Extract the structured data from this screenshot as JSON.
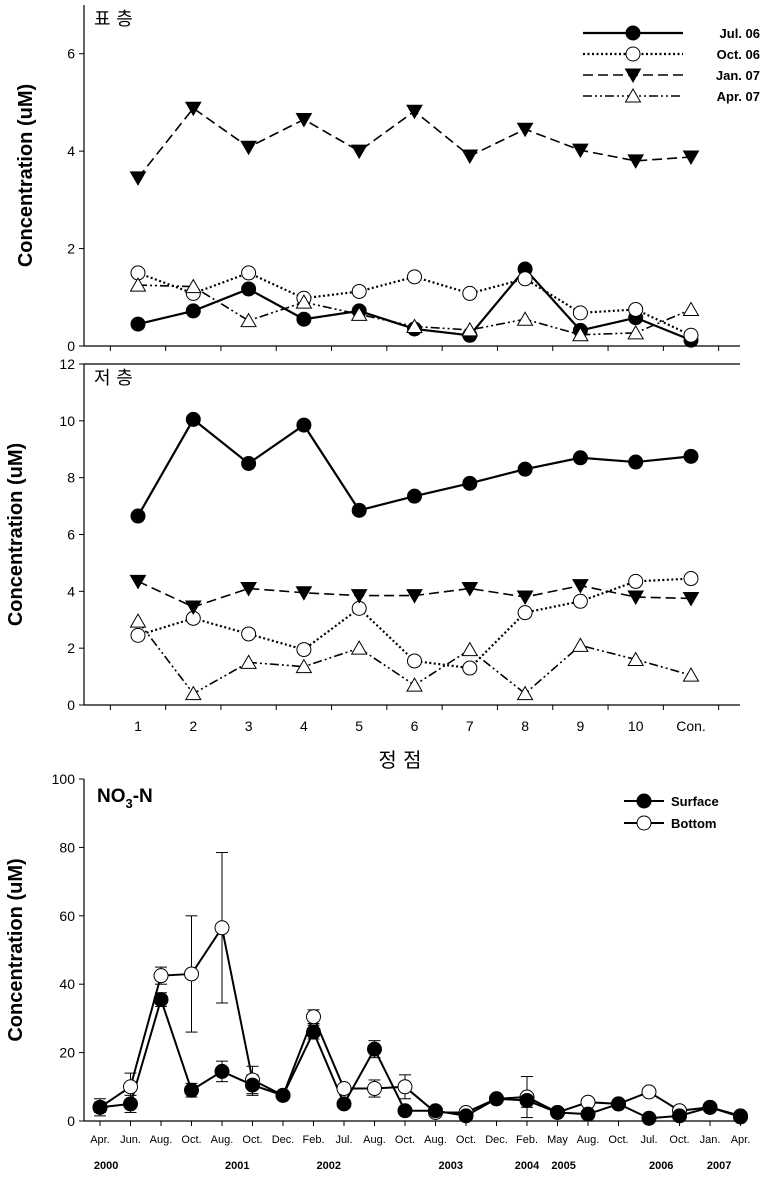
{
  "chart_data": [
    {
      "type": "line",
      "title": "표 층",
      "xlabel": "",
      "ylabel": "Concentration (uM)",
      "ylim": [
        0,
        7
      ],
      "yticks": [
        0,
        2,
        4,
        6
      ],
      "categories": [
        "1",
        "2",
        "3",
        "4",
        "5",
        "6",
        "7",
        "8",
        "9",
        "10",
        "Con."
      ],
      "series": [
        {
          "name": "Jul. 06",
          "values": [
            0.45,
            0.72,
            1.17,
            0.55,
            0.72,
            0.35,
            0.22,
            1.58,
            0.32,
            0.58,
            0.12
          ]
        },
        {
          "name": "Oct. 06",
          "values": [
            1.5,
            1.08,
            1.5,
            0.98,
            1.12,
            1.42,
            1.08,
            1.38,
            0.68,
            0.75,
            0.22
          ]
        },
        {
          "name": "Jan. 07",
          "values": [
            3.45,
            4.88,
            4.08,
            4.65,
            4.0,
            4.82,
            3.9,
            4.45,
            4.02,
            3.8,
            3.88
          ]
        },
        {
          "name": "Apr. 07",
          "values": [
            1.25,
            1.22,
            0.52,
            0.9,
            0.65,
            0.4,
            0.33,
            0.55,
            0.23,
            0.27,
            0.75
          ]
        }
      ]
    },
    {
      "type": "line",
      "title": "저 층",
      "xlabel": "정 점",
      "ylabel": "Concentration (uM)",
      "ylim": [
        0,
        12
      ],
      "yticks": [
        0,
        2,
        4,
        6,
        8,
        10,
        12
      ],
      "categories": [
        "1",
        "2",
        "3",
        "4",
        "5",
        "6",
        "7",
        "8",
        "9",
        "10",
        "Con."
      ],
      "series": [
        {
          "name": "Jul. 06",
          "values": [
            6.65,
            10.05,
            8.5,
            9.85,
            6.85,
            7.35,
            7.8,
            8.3,
            8.7,
            8.55,
            8.75
          ]
        },
        {
          "name": "Oct. 06",
          "values": [
            2.45,
            3.05,
            2.5,
            1.95,
            3.4,
            1.55,
            1.3,
            3.25,
            3.65,
            4.35,
            4.45
          ]
        },
        {
          "name": "Jan. 07",
          "values": [
            4.35,
            3.45,
            4.1,
            3.95,
            3.85,
            3.85,
            4.1,
            3.8,
            4.2,
            3.8,
            3.75
          ]
        },
        {
          "name": "Apr. 07",
          "values": [
            2.95,
            0.4,
            1.5,
            1.35,
            2.0,
            0.7,
            1.95,
            0.4,
            2.1,
            1.6,
            1.05
          ]
        }
      ]
    },
    {
      "type": "line",
      "title": "NO3-N",
      "title_main": "NO",
      "title_sub": "3",
      "title_tail": "-N",
      "xlabel": "",
      "ylabel": "Concentration (uM)",
      "ylim": [
        0,
        100
      ],
      "yticks": [
        0,
        20,
        40,
        60,
        80,
        100
      ],
      "categories": [
        "Apr.",
        "Jun.",
        "Aug.",
        "Oct.",
        "Aug.",
        "Oct.",
        "Dec.",
        "Feb.",
        "Jul.",
        "Aug.",
        "Oct.",
        "Aug.",
        "Oct.",
        "Dec.",
        "Feb.",
        "May",
        "Aug.",
        "Oct.",
        "Jul.",
        "Oct.",
        "Jan.",
        "Apr."
      ],
      "years": [
        {
          "label": "2000",
          "at": 0.2
        },
        {
          "label": "2001",
          "at": 4.5
        },
        {
          "label": "2002",
          "at": 7.5
        },
        {
          "label": "2003",
          "at": 11.5
        },
        {
          "label": "2004",
          "at": 14.0
        },
        {
          "label": "2005",
          "at": 15.2
        },
        {
          "label": "2006",
          "at": 18.4
        },
        {
          "label": "2007",
          "at": 20.3
        }
      ],
      "series": [
        {
          "name": "Surface",
          "values": [
            4.0,
            5.0,
            35.5,
            9.0,
            14.5,
            10.5,
            7.5,
            26.0,
            5.0,
            21.0,
            3.0,
            3.0,
            1.5,
            6.5,
            6.0,
            2.5,
            2.0,
            5.0,
            0.8,
            1.5,
            4.0,
            1.2
          ],
          "errors": [
            1.5,
            2.5,
            2.0,
            2.0,
            3.0,
            3.0,
            0.0,
            2.0,
            0.0,
            2.5,
            0.0,
            0.0,
            0.0,
            0.0,
            2.0,
            0.0,
            0.0,
            0.0,
            0.0,
            0.0,
            0.0,
            0.0
          ]
        },
        {
          "name": "Bottom",
          "values": [
            4.0,
            10.0,
            42.5,
            43.0,
            56.5,
            12.0,
            7.5,
            30.5,
            9.5,
            9.5,
            10.0,
            2.5,
            2.5,
            6.5,
            7.0,
            2.5,
            5.5,
            5.0,
            8.5,
            3.0,
            4.0,
            1.5
          ],
          "errors": [
            2.5,
            4.0,
            2.5,
            17.0,
            22.0,
            4.0,
            0.0,
            2.0,
            0.0,
            2.5,
            3.5,
            0.0,
            0.0,
            0.0,
            6.0,
            0.0,
            0.0,
            0.0,
            0.0,
            0.0,
            0.0,
            0.0
          ]
        }
      ]
    }
  ]
}
